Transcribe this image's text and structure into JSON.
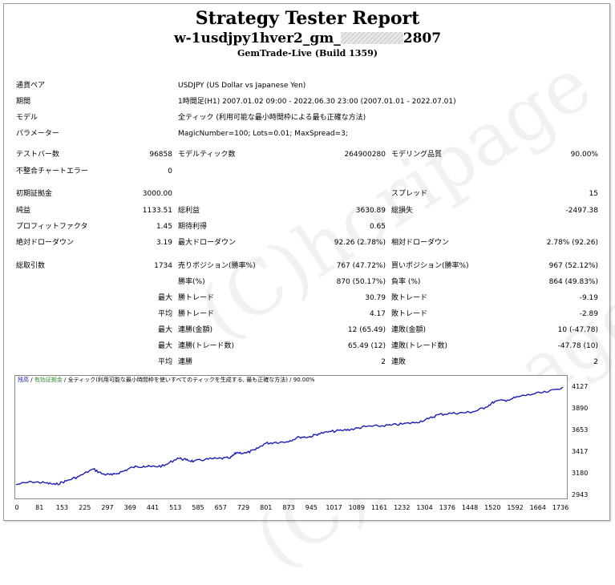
{
  "header": {
    "title": "Strategy Tester Report",
    "ea_prefix": "w-1usdjpy1hver2_gm_",
    "ea_suffix": "2807",
    "server": "GemTrade-Live (Build 1359)"
  },
  "info": {
    "symbol_label": "通貨ペア",
    "symbol_value": "USDJPY (US Dollar vs Japanese Yen)",
    "period_label": "期間",
    "period_value": "1時間足(H1) 2007.01.02 09:00 - 2022.06.30 23:00 (2007.01.01 - 2022.07.01)",
    "model_label": "モデル",
    "model_value": "全ティック (利用可能な最小時間枠による最も正確な方法)",
    "params_label": "パラメーター",
    "params_value": "MagicNumber=100; Lots=0.01; MaxSpread=3;"
  },
  "stats": {
    "bars_label": "テストバー数",
    "bars_value": "96858",
    "ticks_label": "モデルティック数",
    "ticks_value": "264900280",
    "quality_label": "モデリング品質",
    "quality_value": "90.00%",
    "mismatch_label": "不整合チャートエラー",
    "mismatch_value": "0",
    "deposit_label": "初期証拠金",
    "deposit_value": "3000.00",
    "spread_label": "スプレッド",
    "spread_value": "15",
    "net_label": "純益",
    "net_value": "1133.51",
    "gross_profit_label": "総利益",
    "gross_profit_value": "3630.89",
    "gross_loss_label": "総損失",
    "gross_loss_value": "-2497.38",
    "pf_label": "プロフィットファクタ",
    "pf_value": "1.45",
    "payoff_label": "期待利得",
    "payoff_value": "0.65",
    "abs_dd_label": "絶対ドローダウン",
    "abs_dd_value": "3.19",
    "max_dd_label": "最大ドローダウン",
    "max_dd_value": "92.26 (2.78%)",
    "rel_dd_label": "相対ドローダウン",
    "rel_dd_value": "2.78% (92.26)",
    "trades_label": "総取引数",
    "trades_value": "1734",
    "short_label": "売りポジション(勝率%)",
    "short_value": "767 (47.72%)",
    "long_label": "買いポジション(勝率%)",
    "long_value": "967 (52.12%)",
    "win_rate_label": "勝率(%)",
    "win_rate_value": "870 (50.17%)",
    "loss_rate_label": "負率 (%)",
    "loss_rate_value": "864 (49.83%)",
    "max_label": "最大",
    "avg_label": "平均",
    "largest_win_label": "勝トレード",
    "largest_win_value": "30.79",
    "largest_loss_label": "敗トレード",
    "largest_loss_value": "-9.19",
    "avg_win_label": "勝トレード",
    "avg_win_value": "4.17",
    "avg_loss_label": "敗トレード",
    "avg_loss_value": "-2.89",
    "max_cons_win_label": "連勝(金額)",
    "max_cons_win_value": "12 (65.49)",
    "max_cons_loss_label": "連敗(金額)",
    "max_cons_loss_value": "10 (-47.78)",
    "max_cons_profit_label": "連勝(トレード数)",
    "max_cons_profit_value": "65.49 (12)",
    "max_cons_lossamt_label": "連敗(トレード数)",
    "max_cons_lossamt_value": "-47.78 (10)",
    "avg_cons_win_label": "連勝",
    "avg_cons_win_value": "2",
    "avg_cons_loss_label": "連敗",
    "avg_cons_loss_value": "2"
  },
  "chart_legend": {
    "balance": "残高",
    "sep": " / ",
    "volume": "有効証拠金",
    "model": "全ティック(利用可能な最小時間枠を使いすべてのティックを生成する, 最も正確な方法)",
    "quality": "90.00%"
  },
  "watermark": "(C)horipage",
  "colors": {
    "line": "#1c1cb4",
    "balance_legend": "#1c1cb4",
    "volume_legend": "#2e8b2e"
  },
  "chart_data": {
    "type": "line",
    "title": "",
    "xlabel": "",
    "ylabel": "",
    "x_ticks": [
      "0",
      "81",
      "153",
      "225",
      "297",
      "369",
      "441",
      "513",
      "585",
      "657",
      "729",
      "801",
      "873",
      "945",
      "1017",
      "1089",
      "1161",
      "1232",
      "1304",
      "1376",
      "1448",
      "1520",
      "1592",
      "1664",
      "1736"
    ],
    "y_ticks": [
      "4127",
      "3890",
      "3653",
      "3417",
      "3180",
      "2943"
    ],
    "xlim": [
      0,
      1736
    ],
    "ylim": [
      2943,
      4127
    ],
    "series": [
      {
        "name": "残高",
        "x": [
          0,
          50,
          90,
          125,
          160,
          200,
          245,
          275,
          305,
          340,
          370,
          405,
          430,
          470,
          513,
          540,
          565,
          600,
          640,
          680,
          700,
          730,
          760,
          790,
          820,
          860,
          900,
          930,
          960,
          1000,
          1040,
          1075,
          1110,
          1150,
          1190,
          1230,
          1270,
          1310,
          1340,
          1380,
          1420,
          1455,
          1490,
          1520,
          1560,
          1600,
          1640,
          1690,
          1736
        ],
        "y": [
          3060,
          3090,
          3080,
          3060,
          3100,
          3150,
          3230,
          3175,
          3165,
          3205,
          3250,
          3262,
          3255,
          3265,
          3350,
          3330,
          3315,
          3335,
          3345,
          3350,
          3410,
          3405,
          3440,
          3510,
          3520,
          3530,
          3580,
          3580,
          3615,
          3640,
          3655,
          3670,
          3695,
          3700,
          3710,
          3725,
          3740,
          3780,
          3825,
          3840,
          3845,
          3860,
          3905,
          3970,
          3985,
          4025,
          4050,
          4075,
          4127
        ]
      }
    ]
  }
}
